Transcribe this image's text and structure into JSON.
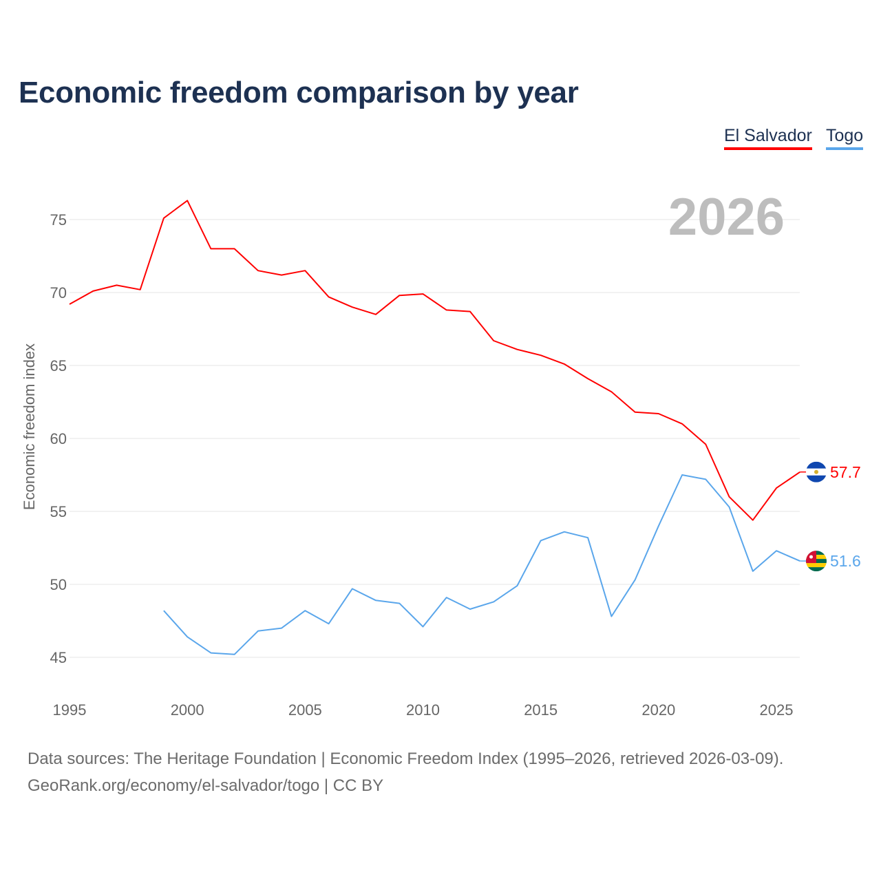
{
  "chart_data": {
    "type": "line",
    "title": "Economic freedom comparison by year",
    "xlabel": "",
    "ylabel": "Economic freedom index",
    "xlim": [
      1995,
      2026
    ],
    "ylim": [
      43,
      78
    ],
    "yticks": [
      45,
      50,
      55,
      60,
      65,
      70,
      75
    ],
    "xticks": [
      1995,
      2000,
      2005,
      2010,
      2015,
      2020,
      2025
    ],
    "grid": true,
    "legend_placement": "top-right",
    "year_label": "2026",
    "series": [
      {
        "name": "El Salvador",
        "color": "#ff0000",
        "end_label": "57.7",
        "x": [
          1995,
          1996,
          1997,
          1998,
          1999,
          2000,
          2001,
          2002,
          2003,
          2004,
          2005,
          2006,
          2007,
          2008,
          2009,
          2010,
          2011,
          2012,
          2013,
          2014,
          2015,
          2016,
          2017,
          2018,
          2019,
          2020,
          2021,
          2022,
          2023,
          2024,
          2025,
          2026
        ],
        "values": [
          69.2,
          70.1,
          70.5,
          70.2,
          75.1,
          76.3,
          73.0,
          73.0,
          71.5,
          71.2,
          71.5,
          69.7,
          69.0,
          68.5,
          69.8,
          69.9,
          68.8,
          68.7,
          66.7,
          66.1,
          65.7,
          65.1,
          64.1,
          63.2,
          61.8,
          61.7,
          61.0,
          59.6,
          56.0,
          54.4,
          56.6,
          57.7
        ]
      },
      {
        "name": "Togo",
        "color": "#5aa6eb",
        "end_label": "51.6",
        "x": [
          1999,
          2000,
          2001,
          2002,
          2003,
          2004,
          2005,
          2006,
          2007,
          2008,
          2009,
          2010,
          2011,
          2012,
          2013,
          2014,
          2015,
          2016,
          2017,
          2018,
          2019,
          2020,
          2021,
          2022,
          2023,
          2024,
          2025,
          2026
        ],
        "values": [
          48.2,
          46.4,
          45.3,
          45.2,
          46.8,
          47.0,
          48.2,
          47.3,
          49.7,
          48.9,
          48.7,
          47.1,
          49.1,
          48.3,
          48.8,
          49.9,
          53.0,
          53.6,
          53.2,
          47.8,
          50.3,
          54.0,
          57.5,
          57.2,
          55.3,
          50.9,
          52.3,
          51.6
        ]
      }
    ]
  },
  "footer": {
    "line1": "Data sources: The Heritage Foundation | Economic Freedom Index (1995–2026, retrieved 2026-03-09).",
    "line2": "GeoRank.org/economy/el-salvador/togo | CC BY"
  }
}
